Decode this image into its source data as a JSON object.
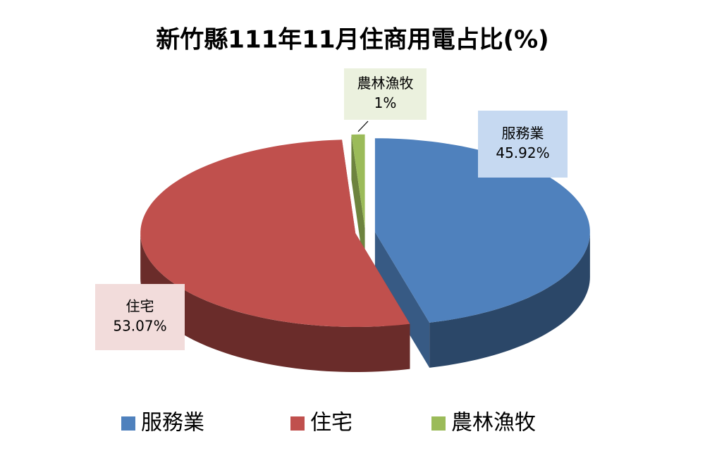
{
  "chart_data": {
    "type": "pie",
    "title": "新竹縣111年11月住商用電占比(%)",
    "categories": [
      "服務業",
      "住宅",
      "農林漁牧"
    ],
    "values": [
      45.92,
      53.07,
      1
    ],
    "value_labels": [
      "45.92%",
      "53.07%",
      "1%"
    ],
    "colors": [
      "#4f81bd",
      "#c0504d",
      "#9bbb59"
    ],
    "legend": "bottom"
  }
}
